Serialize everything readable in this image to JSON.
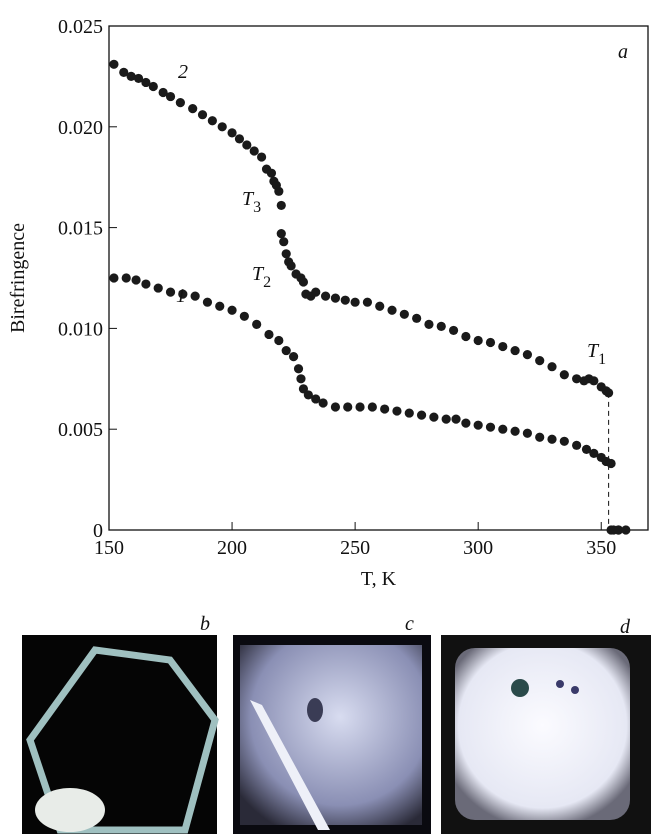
{
  "chart_data": {
    "type": "scatter",
    "y_label": "Birefringence",
    "x_label": "T, K",
    "xlim": [
      150,
      369
    ],
    "ylim": [
      0,
      0.025
    ],
    "xticks": [
      150,
      200,
      250,
      300,
      350
    ],
    "yticks": [
      0,
      0.005,
      {
        "value": 0.01,
        "label": "0.010"
      },
      0.015,
      {
        "value": 0.02,
        "label": "0.020"
      },
      0.025
    ],
    "series": [
      {
        "name": "2",
        "color": "#1a1a1a",
        "x": [
          152,
          156,
          159,
          162,
          165,
          168,
          172,
          175,
          179,
          184,
          188,
          192,
          196,
          200,
          203,
          206,
          209,
          212,
          214,
          216,
          217,
          218,
          219,
          220,
          220,
          221,
          222,
          223,
          224,
          226,
          228,
          229,
          230,
          232,
          234,
          238,
          242,
          246,
          250,
          255,
          260,
          265,
          270,
          275,
          280,
          285,
          290,
          295,
          300,
          305,
          310,
          315,
          320,
          325,
          330,
          335,
          340,
          343,
          345,
          347,
          350,
          352,
          353,
          354,
          355,
          357
        ],
        "values": [
          0.0231,
          0.0227,
          0.0225,
          0.0224,
          0.0222,
          0.022,
          0.0217,
          0.0215,
          0.0212,
          0.0209,
          0.0206,
          0.0203,
          0.02,
          0.0197,
          0.0194,
          0.0191,
          0.0188,
          0.0185,
          0.0179,
          0.0177,
          0.0173,
          0.0171,
          0.0168,
          0.0161,
          0.0147,
          0.0143,
          0.0137,
          0.0133,
          0.0131,
          0.0127,
          0.0125,
          0.0123,
          0.0117,
          0.0116,
          0.0118,
          0.0116,
          0.0115,
          0.0114,
          0.0113,
          0.0113,
          0.0111,
          0.0109,
          0.0107,
          0.0105,
          0.0102,
          0.0101,
          0.0099,
          0.0096,
          0.0094,
          0.0093,
          0.0091,
          0.0089,
          0.0087,
          0.0084,
          0.0081,
          0.0077,
          0.0075,
          0.0074,
          0.0075,
          0.0074,
          0.0071,
          0.0069,
          0.0068,
          0,
          0,
          0
        ]
      },
      {
        "name": "1",
        "color": "#1a1a1a",
        "x": [
          152,
          157,
          161,
          165,
          170,
          175,
          180,
          185,
          190,
          195,
          200,
          205,
          210,
          215,
          219,
          222,
          225,
          227,
          228,
          229,
          231,
          234,
          237,
          242,
          247,
          252,
          257,
          262,
          267,
          272,
          277,
          282,
          287,
          291,
          295,
          300,
          305,
          310,
          315,
          320,
          325,
          330,
          335,
          340,
          344,
          347,
          350,
          352,
          354,
          357,
          360
        ],
        "values": [
          0.0125,
          0.0125,
          0.0124,
          0.0122,
          0.012,
          0.0118,
          0.0117,
          0.0116,
          0.0113,
          0.0111,
          0.0109,
          0.0106,
          0.0102,
          0.0097,
          0.0094,
          0.0089,
          0.0086,
          0.008,
          0.0075,
          0.007,
          0.0067,
          0.0065,
          0.0063,
          0.0061,
          0.0061,
          0.0061,
          0.0061,
          0.006,
          0.0059,
          0.0058,
          0.0057,
          0.0056,
          0.0055,
          0.0055,
          0.0053,
          0.0052,
          0.0051,
          0.005,
          0.0049,
          0.0048,
          0.0046,
          0.0045,
          0.0044,
          0.0042,
          0.004,
          0.0038,
          0.0036,
          0.0034,
          0.0033,
          0,
          0
        ]
      }
    ],
    "annotations": [
      {
        "text": "a"
      },
      {
        "text": "T",
        "subscript": "3"
      },
      {
        "text": "T",
        "subscript": "2"
      },
      {
        "text": "T",
        "subscript": "1"
      }
    ]
  },
  "panels": [
    "b",
    "c",
    "d"
  ]
}
